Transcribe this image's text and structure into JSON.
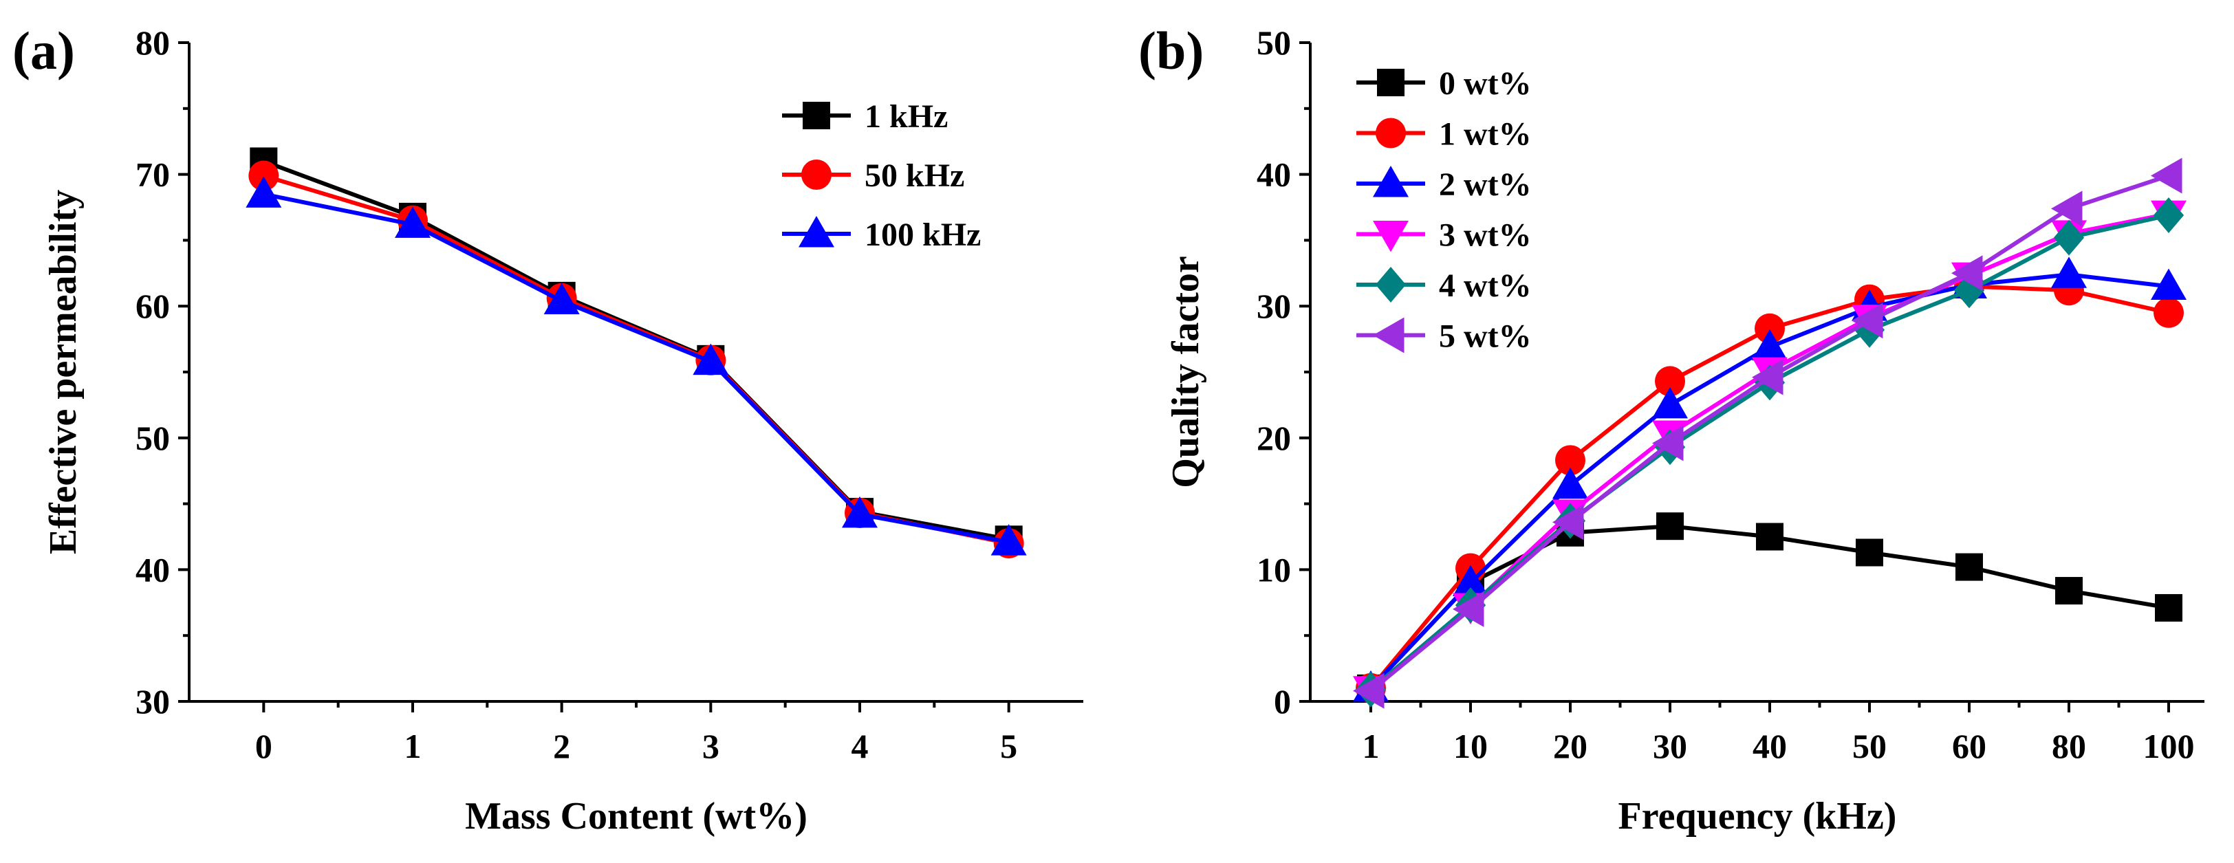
{
  "chart_data": [
    {
      "id": "a",
      "panel_label": "(a)",
      "type": "line",
      "xlabel": "Mass Content (wt%)",
      "ylabel": "Effective permeability",
      "categories": [
        "0",
        "1",
        "2",
        "3",
        "4",
        "5"
      ],
      "x": [
        0,
        1,
        2,
        3,
        4,
        5
      ],
      "xlim": [
        -0.5,
        5.5
      ],
      "ylim": [
        30,
        80
      ],
      "yticks": [
        30,
        40,
        50,
        60,
        70,
        80
      ],
      "legend_position": "top-right",
      "series": [
        {
          "name": "1 kHz",
          "color": "#000000",
          "marker": "square",
          "values": [
            71.0,
            66.8,
            60.8,
            56.0,
            44.4,
            42.3
          ]
        },
        {
          "name": "50 kHz",
          "color": "#ff0000",
          "marker": "circle",
          "values": [
            69.9,
            66.5,
            60.6,
            55.9,
            44.3,
            42.0
          ]
        },
        {
          "name": "100 kHz",
          "color": "#0000ff",
          "marker": "triangle-up",
          "values": [
            68.5,
            66.2,
            60.4,
            55.8,
            44.2,
            42.1
          ]
        }
      ]
    },
    {
      "id": "b",
      "panel_label": "(b)",
      "type": "line",
      "xlabel": "Frequency (kHz)",
      "ylabel": "Quality factor",
      "categories": [
        "1",
        "10",
        "20",
        "30",
        "40",
        "50",
        "60",
        "80",
        "100"
      ],
      "ylim": [
        0,
        50
      ],
      "yticks": [
        0,
        10,
        20,
        30,
        40,
        50
      ],
      "legend_position": "top-left",
      "series": [
        {
          "name": "0 wt%",
          "color": "#000000",
          "marker": "square",
          "values": [
            1.0,
            9.0,
            12.8,
            13.3,
            12.5,
            11.3,
            10.2,
            8.4,
            7.1
          ]
        },
        {
          "name": "1 wt%",
          "color": "#ff0000",
          "marker": "circle",
          "values": [
            1.0,
            10.1,
            18.3,
            24.3,
            28.3,
            30.5,
            31.5,
            31.2,
            29.5
          ]
        },
        {
          "name": "2 wt%",
          "color": "#0000ff",
          "marker": "triangle-up",
          "values": [
            1.0,
            9.0,
            16.4,
            22.5,
            26.9,
            29.9,
            31.6,
            32.4,
            31.5
          ]
        },
        {
          "name": "3 wt%",
          "color": "#ff00ff",
          "marker": "triangle-down",
          "values": [
            0.9,
            7.2,
            14.3,
            20.3,
            25.1,
            29.1,
            32.3,
            35.5,
            37.0
          ]
        },
        {
          "name": "4 wt%",
          "color": "#008080",
          "marker": "diamond",
          "values": [
            0.9,
            7.3,
            13.7,
            19.3,
            24.2,
            28.2,
            31.2,
            35.2,
            36.9
          ]
        },
        {
          "name": "5 wt%",
          "color": "#9b2fe0",
          "marker": "triangle-left",
          "values": [
            0.8,
            7.0,
            13.6,
            19.6,
            24.6,
            28.9,
            32.5,
            37.4,
            39.9
          ]
        }
      ]
    }
  ]
}
